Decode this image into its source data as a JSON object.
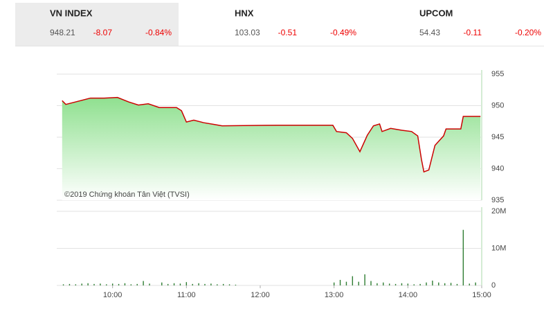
{
  "indices": [
    {
      "name": "VN INDEX",
      "value": "948.21",
      "change": "-8.07",
      "percent": "-0.84%"
    },
    {
      "name": "HNX",
      "value": "103.03",
      "change": "-0.51",
      "percent": "-0.49%"
    },
    {
      "name": "UPCOM",
      "value": "54.43",
      "change": "-0.11",
      "percent": "-0.20%"
    }
  ],
  "chart_data": [
    {
      "type": "line",
      "annotation": "©2019 Chứng khoán Tân Việt (TVSI)",
      "color": "#cc0000",
      "fill": "#8fe08f",
      "x": [
        559,
        562,
        570,
        582,
        593,
        604,
        613,
        621,
        629,
        638,
        652,
        656,
        660,
        666,
        674,
        683,
        689,
        734,
        779,
        782,
        790,
        795,
        801,
        807,
        812,
        817,
        819,
        826,
        835,
        843,
        848,
        851,
        853,
        857,
        862,
        869,
        871,
        883,
        885,
        899
      ],
      "values": [
        950.8,
        950.2,
        950.6,
        951.2,
        951.2,
        951.3,
        950.6,
        950.1,
        950.3,
        949.7,
        949.7,
        949.2,
        947.4,
        947.7,
        947.3,
        947.0,
        946.8,
        946.9,
        946.9,
        945.9,
        945.7,
        944.8,
        942.7,
        945.3,
        946.8,
        947.1,
        945.9,
        946.4,
        946.1,
        945.9,
        945.2,
        941.5,
        939.5,
        939.8,
        943.7,
        945.2,
        946.3,
        946.3,
        948.3,
        948.3
      ],
      "xlim": [
        558,
        900
      ],
      "ylim": [
        935,
        955
      ],
      "yticks": [
        935,
        940,
        945,
        950,
        955
      ],
      "grid": true
    },
    {
      "type": "bar",
      "color": "#2e7d32",
      "x": [
        560,
        565,
        570,
        575,
        580,
        585,
        590,
        595,
        600,
        605,
        610,
        615,
        620,
        625,
        630,
        640,
        645,
        650,
        655,
        660,
        665,
        670,
        675,
        680,
        685,
        690,
        695,
        700,
        780,
        785,
        790,
        795,
        800,
        805,
        810,
        815,
        820,
        825,
        830,
        835,
        840,
        845,
        850,
        855,
        860,
        865,
        870,
        875,
        880,
        885,
        890,
        895
      ],
      "values": [
        0.3,
        0.4,
        0.3,
        0.5,
        0.6,
        0.4,
        0.5,
        0.3,
        0.5,
        0.4,
        0.6,
        0.3,
        0.4,
        1.2,
        0.5,
        0.8,
        0.4,
        0.6,
        0.5,
        0.9,
        0.4,
        0.6,
        0.4,
        0.5,
        0.3,
        0.4,
        0.3,
        0.2,
        0.8,
        1.5,
        1.0,
        2.5,
        1.0,
        3.0,
        1.2,
        0.6,
        0.8,
        0.5,
        0.4,
        0.6,
        0.5,
        0.3,
        0.4,
        0.8,
        1.3,
        0.8,
        0.6,
        0.7,
        0.4,
        15.0,
        0.5,
        0.8
      ],
      "xlim": [
        558,
        900
      ],
      "ylim": [
        0,
        20
      ],
      "yticks": [
        0,
        {
          "value": 10,
          "label": "10M"
        },
        {
          "value": 20,
          "label": "20M"
        }
      ],
      "xticks": [
        {
          "value": 600,
          "label": "10:00"
        },
        {
          "value": 660,
          "label": "11:00"
        },
        {
          "value": 720,
          "label": "12:00"
        },
        {
          "value": 780,
          "label": "13:00"
        },
        {
          "value": 840,
          "label": "14:00"
        },
        {
          "value": 900,
          "label": "15:00"
        }
      ],
      "grid": true
    }
  ]
}
